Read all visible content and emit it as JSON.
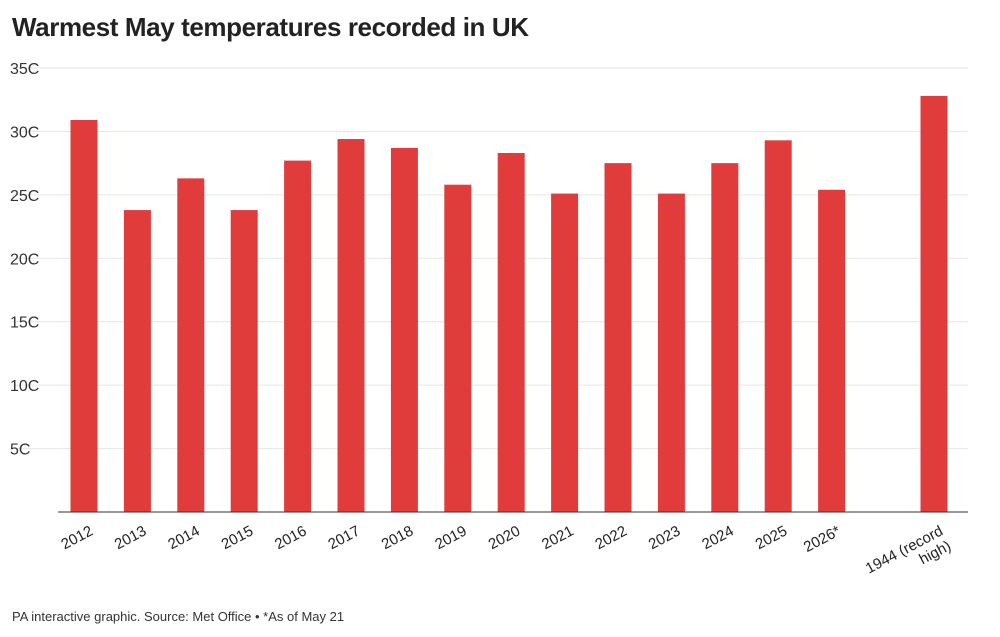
{
  "chart_data": {
    "type": "bar",
    "title": "Warmest May temperatures recorded in UK",
    "categories": [
      "2012",
      "2013",
      "2014",
      "2015",
      "2016",
      "2017",
      "2018",
      "2019",
      "2020",
      "2021",
      "2022",
      "2023",
      "2024",
      "2025",
      "2026*",
      "1944 (record high)"
    ],
    "category_lines": [
      [
        "2012"
      ],
      [
        "2013"
      ],
      [
        "2014"
      ],
      [
        "2015"
      ],
      [
        "2016"
      ],
      [
        "2017"
      ],
      [
        "2018"
      ],
      [
        "2019"
      ],
      [
        "2020"
      ],
      [
        "2021"
      ],
      [
        "2022"
      ],
      [
        "2023"
      ],
      [
        "2024"
      ],
      [
        "2025"
      ],
      [
        "2026*"
      ],
      [
        "1944 (record",
        "high)"
      ]
    ],
    "values": [
      30.9,
      23.8,
      26.3,
      23.8,
      27.7,
      29.4,
      28.7,
      25.8,
      28.3,
      25.1,
      27.5,
      25.1,
      27.5,
      29.3,
      25.4,
      32.8
    ],
    "ylim": [
      0,
      35
    ],
    "yticks": [
      5,
      10,
      15,
      20,
      25,
      30,
      35
    ],
    "ytick_labels": [
      "5C",
      "10C",
      "15C",
      "20C",
      "25C",
      "30C",
      "35C"
    ],
    "xlabel": "",
    "ylabel": "",
    "grid": true,
    "bar_color": "#e03c3c",
    "footnote": "PA interactive graphic. Source: Met Office • *As of May 21"
  }
}
